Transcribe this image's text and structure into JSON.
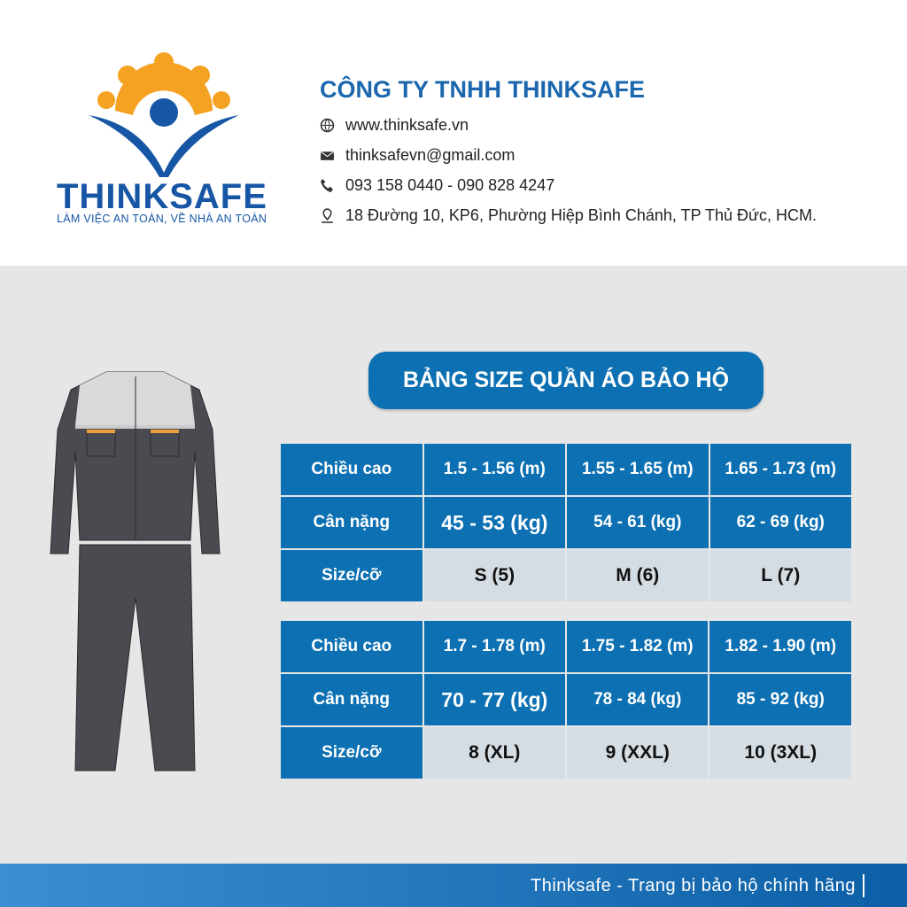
{
  "logo": {
    "brand": "THINKSAFE",
    "tagline": "LÀM VIỆC AN TOÀN, VỀ NHÀ AN TOÀN",
    "colors": {
      "orange": "#f5a121",
      "blue": "#1656a5"
    }
  },
  "company": {
    "name": "CÔNG TY TNHH THINKSAFE",
    "contacts": [
      {
        "icon": "globe-icon",
        "text": "www.thinksafe.vn"
      },
      {
        "icon": "mail-icon",
        "text": "thinksafevn@gmail.com"
      },
      {
        "icon": "phone-icon",
        "text": "093 158 0440 - 090 828 4247"
      },
      {
        "icon": "location-icon",
        "text": "18 Đường 10, KP6, Phường Hiệp Bình Chánh, TP Thủ Đức, HCM."
      }
    ]
  },
  "title": "BẢNG SIZE QUẦN ÁO BẢO HỘ",
  "tables": [
    {
      "rows": [
        {
          "label": "Chiều cao",
          "values": [
            "1.5 - 1.56 (m)",
            "1.55 - 1.65 (m)",
            "1.65 - 1.73 (m)"
          ]
        },
        {
          "label": "Cân nặng",
          "values": [
            "45 - 53 (kg)",
            "54 - 61 (kg)",
            "62 - 69 (kg)"
          ]
        },
        {
          "label": "Size/cỡ",
          "values": [
            "S (5)",
            "M (6)",
            "L (7)"
          ]
        }
      ]
    },
    {
      "rows": [
        {
          "label": "Chiều cao",
          "values": [
            "1.7 - 1.78 (m)",
            "1.75 - 1.82  (m)",
            "1.82 - 1.90 (m)"
          ]
        },
        {
          "label": "Cân nặng",
          "values": [
            "70 - 77 (kg)",
            "78 - 84 (kg)",
            "85 - 92 (kg)"
          ]
        },
        {
          "label": "Size/cỡ",
          "values": [
            "8 (XL)",
            "9 (XXL)",
            "10 (3XL)"
          ]
        }
      ]
    }
  ],
  "footer": "Thinksafe - Trang bị bảo hộ chính hãng",
  "colors": {
    "table_blue": "#0d70b2",
    "size_row": "#d5dde4",
    "background": "#e6e6e6"
  }
}
